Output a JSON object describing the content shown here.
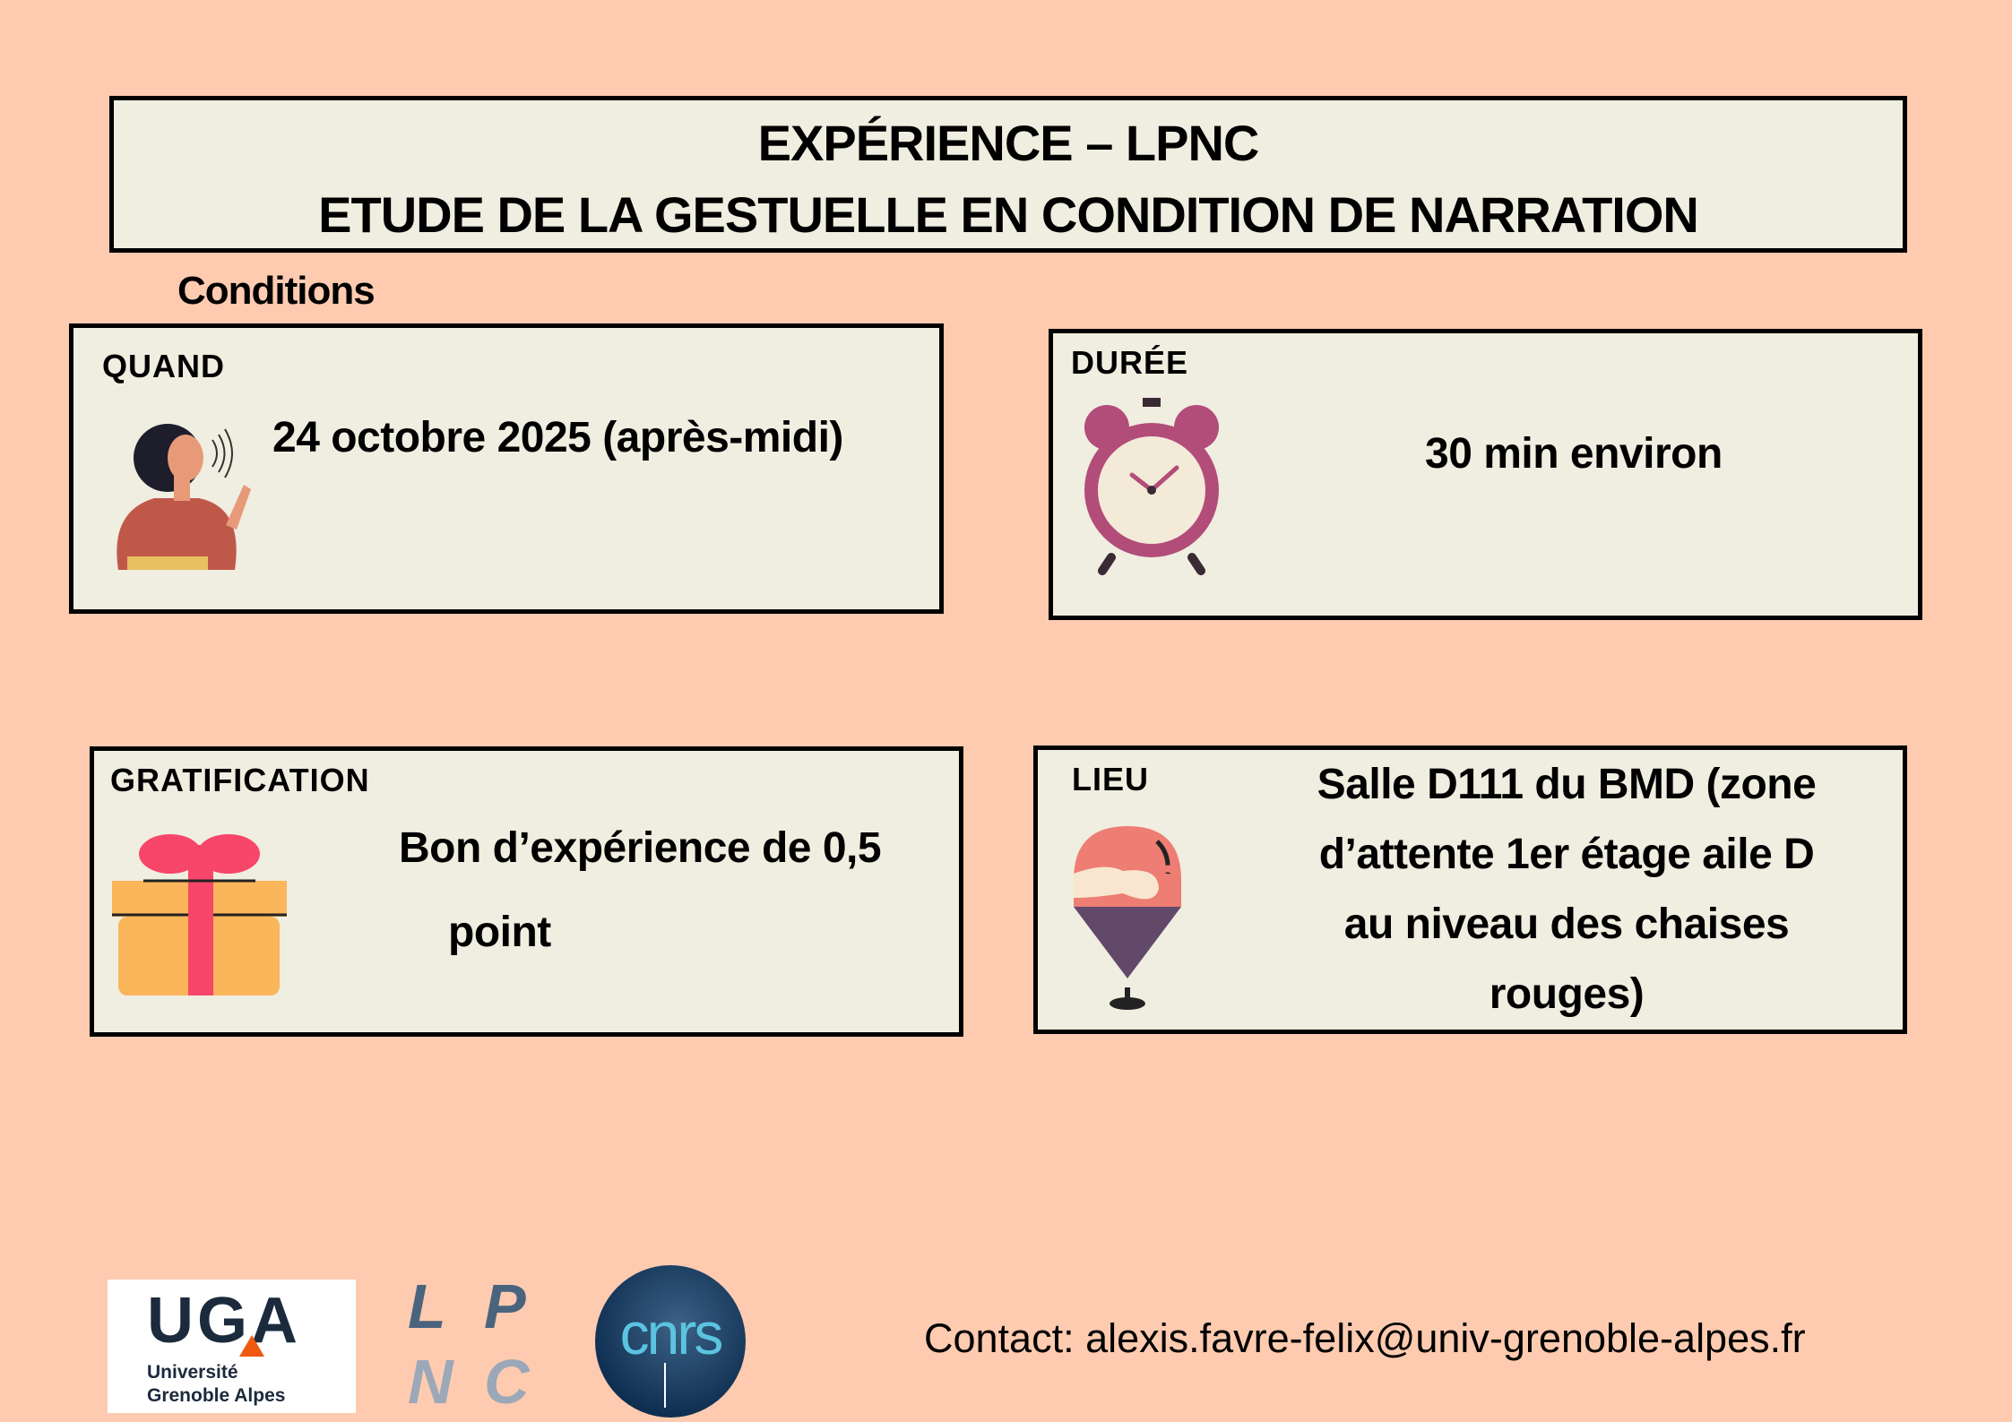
{
  "title": {
    "line1": "EXPÉRIENCE – LPNC",
    "line2": "ETUDE DE LA GESTUELLE EN CONDITION DE NARRATION"
  },
  "section_label": "Conditions",
  "cards": {
    "quand": {
      "label": "QUAND",
      "text": "24 octobre 2025 (après-midi)",
      "icon": "woman-speaking-icon"
    },
    "duree": {
      "label": "DURÉE",
      "text": "30 min environ",
      "icon": "alarm-clock-icon"
    },
    "gratification": {
      "label": "GRATIFICATION",
      "line1": "Bon d’expérience de 0,5",
      "line2": "point",
      "icon": "gift-icon"
    },
    "lieu": {
      "label": "LIEU",
      "lines": [
        "Salle D111 du BMD (zone",
        "d’attente 1er étage aile D",
        "au niveau des chaises",
        "rouges)"
      ],
      "icon": "map-pin-icon"
    }
  },
  "logos": {
    "uga": {
      "mark": "UGA",
      "line1": "Université",
      "line2": "Grenoble Alpes"
    },
    "lpnc": "LPNC",
    "cnrs": "cnrs"
  },
  "contact": "Contact: alexis.favre-felix@univ-grenoble-alpes.fr",
  "colors": {
    "background": "#fecbb0",
    "card": "#efeee0",
    "border": "#000000"
  }
}
